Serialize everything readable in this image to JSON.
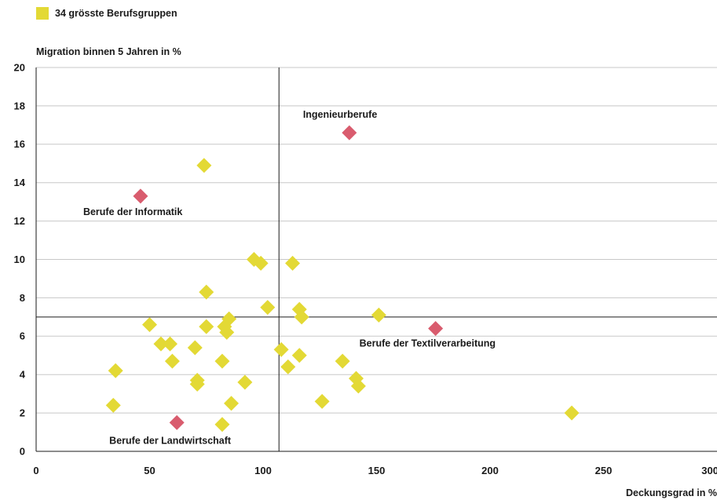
{
  "legend": {
    "label": "34 grösste Berufsgruppen",
    "color": "#e3d935"
  },
  "chart_data": {
    "type": "scatter",
    "ylabel": "Migration binnen 5 Jahren in %",
    "xlabel": "Deckungsgrad in %",
    "xlim": [
      0,
      300
    ],
    "ylim": [
      0,
      20
    ],
    "xticks": [
      "0",
      "50",
      "100",
      "150",
      "200",
      "250",
      "300"
    ],
    "yticks": [
      "0",
      "2",
      "4",
      "6",
      "8",
      "10",
      "12",
      "14",
      "16",
      "18",
      "20"
    ],
    "grid": "horizontal",
    "reference_lines": {
      "x": 107,
      "y": 7
    },
    "colors": {
      "group": "#e3d935",
      "highlight": "#d95c6e"
    },
    "points": [
      {
        "x": 74,
        "y": 14.9
      },
      {
        "x": 96,
        "y": 10.0
      },
      {
        "x": 99,
        "y": 9.8
      },
      {
        "x": 113,
        "y": 9.8
      },
      {
        "x": 75,
        "y": 8.3
      },
      {
        "x": 102,
        "y": 7.5
      },
      {
        "x": 116,
        "y": 7.4
      },
      {
        "x": 117,
        "y": 7.0
      },
      {
        "x": 151,
        "y": 7.1
      },
      {
        "x": 85,
        "y": 6.9
      },
      {
        "x": 50,
        "y": 6.6
      },
      {
        "x": 75,
        "y": 6.5
      },
      {
        "x": 83,
        "y": 6.5
      },
      {
        "x": 84,
        "y": 6.2
      },
      {
        "x": 55,
        "y": 5.6
      },
      {
        "x": 59,
        "y": 5.6
      },
      {
        "x": 70,
        "y": 5.4
      },
      {
        "x": 108,
        "y": 5.3
      },
      {
        "x": 116,
        "y": 5.0
      },
      {
        "x": 60,
        "y": 4.7
      },
      {
        "x": 82,
        "y": 4.7
      },
      {
        "x": 135,
        "y": 4.7
      },
      {
        "x": 111,
        "y": 4.4
      },
      {
        "x": 35,
        "y": 4.2
      },
      {
        "x": 141,
        "y": 3.8
      },
      {
        "x": 71,
        "y": 3.7
      },
      {
        "x": 71,
        "y": 3.5
      },
      {
        "x": 92,
        "y": 3.6
      },
      {
        "x": 142,
        "y": 3.4
      },
      {
        "x": 126,
        "y": 2.6
      },
      {
        "x": 86,
        "y": 2.5
      },
      {
        "x": 34,
        "y": 2.4
      },
      {
        "x": 236,
        "y": 2.0
      },
      {
        "x": 82,
        "y": 1.4
      }
    ],
    "highlighted": [
      {
        "x": 138,
        "y": 16.6,
        "label": "Ingenieurberufe"
      },
      {
        "x": 46,
        "y": 13.3,
        "label": "Berufe der Informatik"
      },
      {
        "x": 176,
        "y": 6.4,
        "label": "Berufe der Textilverarbeitung"
      },
      {
        "x": 62,
        "y": 1.5,
        "label": "Berufe der Landwirtschaft"
      }
    ]
  }
}
